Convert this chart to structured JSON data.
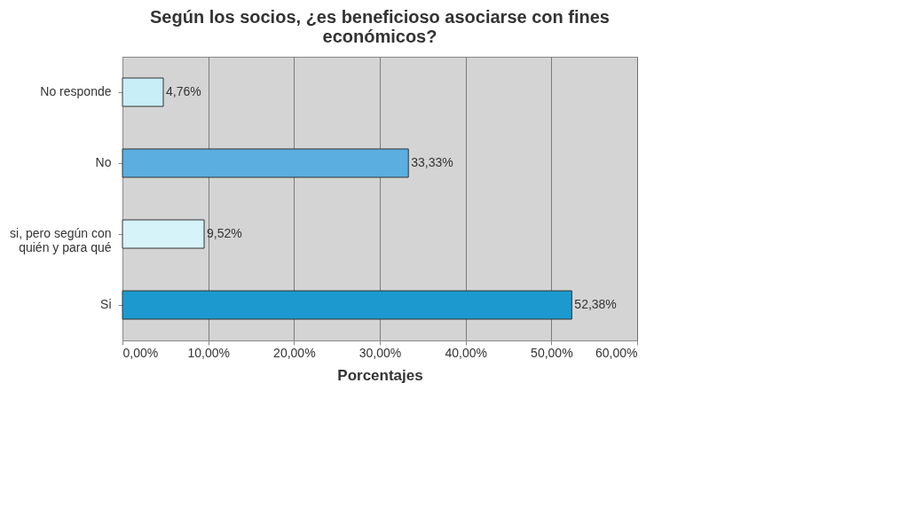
{
  "chart_data": {
    "type": "bar",
    "orientation": "horizontal",
    "title": "Según los socios, ¿es beneficioso asociarse con fines económicos?",
    "xlabel": "Porcentajes",
    "categories": [
      "No responde",
      "No",
      "si, pero según con quién y para qué",
      "Si"
    ],
    "values": [
      4.76,
      33.33,
      9.52,
      52.38
    ],
    "colors": [
      "#c8eef8",
      "#5aaee0",
      "#d6f3fa",
      "#1c9ad0"
    ],
    "value_labels": [
      "4,76%",
      "33,33%",
      "9,52%",
      "52,38%"
    ],
    "xlim": [
      0,
      60
    ],
    "xticks": [
      {
        "value": 0,
        "label": "0,00%"
      },
      {
        "value": 10,
        "label": "10,00%"
      },
      {
        "value": 20,
        "label": "20,00%"
      },
      {
        "value": 30,
        "label": "30,00%"
      },
      {
        "value": 40,
        "label": "40,00%"
      },
      {
        "value": 50,
        "label": "50,00%"
      },
      {
        "value": 60,
        "label": "60,00%"
      }
    ],
    "grid": "x"
  }
}
